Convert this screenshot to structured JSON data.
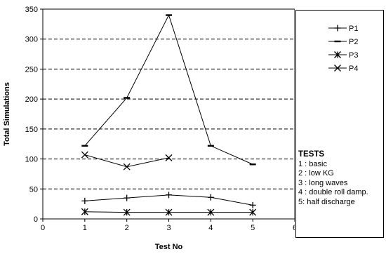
{
  "chart_data": {
    "type": "line",
    "xlabel": "Test No",
    "ylabel": "Total Simulations",
    "xlim": [
      0,
      6
    ],
    "ylim": [
      0,
      350
    ],
    "xticks": [
      0,
      1,
      2,
      3,
      4,
      5,
      6
    ],
    "yticks": [
      0,
      50,
      100,
      150,
      200,
      250,
      300,
      350
    ],
    "grid": "horizontal-dashed",
    "x": [
      1,
      2,
      3,
      4,
      5
    ],
    "series": [
      {
        "name": "P1",
        "marker": "plus",
        "values": [
          30,
          35,
          40,
          36,
          23
        ]
      },
      {
        "name": "P2",
        "marker": "dash",
        "values": [
          122,
          202,
          340,
          122,
          91
        ]
      },
      {
        "name": "P3",
        "marker": "star",
        "values": [
          12,
          11,
          11,
          11,
          11
        ]
      },
      {
        "name": "P4",
        "marker": "cross",
        "values": [
          107,
          87,
          102,
          null,
          null
        ]
      }
    ],
    "legend_position": "right"
  },
  "tests": {
    "title": "TESTS",
    "items": [
      "1 : basic",
      "2 : low KG",
      "3 : long waves",
      "4 : double roll damp.",
      "5: half discharge"
    ]
  },
  "colors": {
    "line": "#000000",
    "background": "#ffffff",
    "grid": "#000000"
  }
}
